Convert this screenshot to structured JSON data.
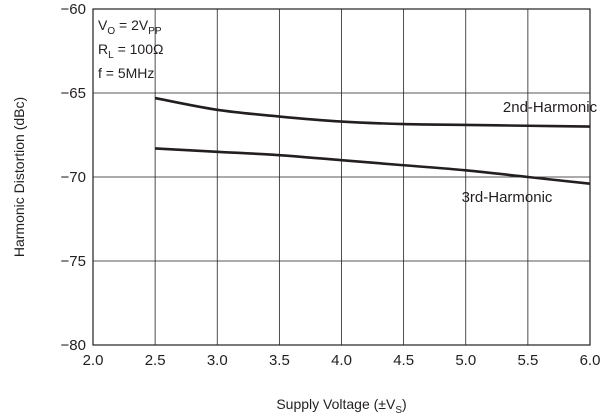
{
  "chart_data": {
    "type": "line",
    "xlabel": "Supply Voltage (±V",
    "xlabel_sub": "S",
    "xlabel_end": ")",
    "ylabel": "Harmonic Distortion (dBc)",
    "xlim": [
      2.0,
      6.0
    ],
    "ylim": [
      -80,
      -60
    ],
    "x_ticks": [
      "2.0",
      "2.5",
      "3.0",
      "3.5",
      "4.0",
      "4.5",
      "5.0",
      "5.5",
      "6.0"
    ],
    "y_ticks": [
      "−60",
      "−65",
      "−70",
      "−75",
      "−80"
    ],
    "grid": true,
    "conditions": {
      "vo_main": "V",
      "vo_sub": "O",
      "vo_value": " = 2V",
      "vo_unit_sub": "PP",
      "rl_main": "R",
      "rl_sub": "L",
      "rl_value": " = 100Ω",
      "f": "f = 5MHz"
    },
    "series": [
      {
        "name": "2nd-Harmonic",
        "x": [
          2.5,
          3.0,
          3.5,
          4.0,
          4.5,
          5.0,
          5.5,
          6.0
        ],
        "y": [
          -65.3,
          -66.0,
          -66.4,
          -66.7,
          -66.85,
          -66.9,
          -66.95,
          -67.0
        ]
      },
      {
        "name": "3rd-Harmonic",
        "x": [
          2.5,
          3.0,
          3.5,
          4.0,
          4.5,
          5.0,
          5.5,
          6.0
        ],
        "y": [
          -68.3,
          -68.5,
          -68.7,
          -69.0,
          -69.3,
          -69.6,
          -70.0,
          -70.4
        ]
      }
    ]
  }
}
